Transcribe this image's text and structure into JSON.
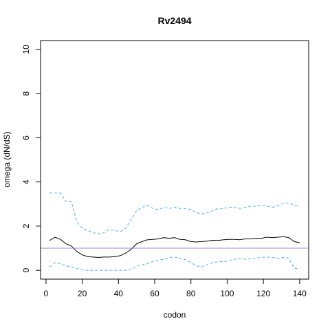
{
  "chart_data": {
    "type": "line",
    "title": "Rv2494",
    "xlabel": "codon",
    "ylabel": "omega (dN/dS)",
    "xlim": [
      -3,
      145
    ],
    "ylim": [
      -0.4,
      10.4
    ],
    "xticks": [
      0,
      20,
      40,
      60,
      80,
      100,
      120,
      140
    ],
    "yticks": [
      0,
      2,
      4,
      6,
      8,
      10
    ],
    "reference_line": {
      "y": 1,
      "color": "#b07fc8"
    },
    "grid": false,
    "series": [
      {
        "style": "solid",
        "color": "#000000",
        "x": [
          2,
          5,
          8,
          11,
          14,
          17,
          20,
          23,
          26,
          29,
          32,
          35,
          38,
          41,
          44,
          47,
          50,
          53,
          56,
          59,
          62,
          65,
          68,
          71,
          74,
          77,
          80,
          83,
          86,
          89,
          92,
          95,
          98,
          101,
          104,
          107,
          110,
          113,
          116,
          119,
          122,
          125,
          128,
          131,
          134,
          137,
          140
        ],
        "y": [
          1.35,
          1.5,
          1.4,
          1.2,
          1.1,
          0.85,
          0.7,
          0.62,
          0.6,
          0.58,
          0.6,
          0.6,
          0.62,
          0.66,
          0.78,
          0.95,
          1.2,
          1.3,
          1.38,
          1.4,
          1.42,
          1.48,
          1.45,
          1.48,
          1.4,
          1.38,
          1.3,
          1.28,
          1.3,
          1.32,
          1.36,
          1.35,
          1.38,
          1.4,
          1.4,
          1.38,
          1.42,
          1.42,
          1.45,
          1.45,
          1.5,
          1.48,
          1.5,
          1.52,
          1.48,
          1.3,
          1.25
        ]
      },
      {
        "style": "dashed",
        "color": "#4ab0e8",
        "x": [
          2,
          5,
          8,
          11,
          14,
          17,
          20,
          23,
          26,
          29,
          32,
          35,
          38,
          41,
          44,
          47,
          50,
          53,
          56,
          59,
          62,
          65,
          68,
          71,
          74,
          77,
          80,
          83,
          86,
          89,
          92,
          95,
          98,
          101,
          104,
          107,
          110,
          113,
          116,
          119,
          122,
          125,
          128,
          131,
          134,
          137,
          140
        ],
        "y": [
          3.5,
          3.5,
          3.5,
          3.1,
          3.1,
          2.2,
          1.9,
          1.8,
          1.7,
          1.65,
          1.7,
          1.85,
          1.8,
          1.75,
          1.9,
          2.3,
          2.7,
          2.85,
          2.95,
          2.8,
          2.75,
          2.85,
          2.8,
          2.85,
          2.8,
          2.8,
          2.75,
          2.6,
          2.55,
          2.6,
          2.7,
          2.8,
          2.8,
          2.85,
          2.85,
          2.8,
          2.85,
          2.9,
          2.9,
          2.95,
          2.9,
          2.85,
          2.95,
          3.05,
          3.05,
          2.95,
          2.9
        ]
      },
      {
        "style": "dashed",
        "color": "#4ab0e8",
        "x": [
          2,
          5,
          8,
          11,
          14,
          17,
          20,
          23,
          26,
          29,
          32,
          35,
          38,
          41,
          44,
          47,
          50,
          53,
          56,
          59,
          62,
          65,
          68,
          71,
          74,
          77,
          80,
          83,
          86,
          89,
          92,
          95,
          98,
          101,
          104,
          107,
          110,
          113,
          116,
          119,
          122,
          125,
          128,
          131,
          134,
          137,
          140
        ],
        "y": [
          0.15,
          0.35,
          0.3,
          0.2,
          0.15,
          0.08,
          0.02,
          0.0,
          0.0,
          0.0,
          0.0,
          0.0,
          0.0,
          0.0,
          0.0,
          0.02,
          0.2,
          0.25,
          0.3,
          0.4,
          0.45,
          0.5,
          0.58,
          0.6,
          0.55,
          0.48,
          0.35,
          0.2,
          0.15,
          0.25,
          0.35,
          0.38,
          0.4,
          0.42,
          0.5,
          0.55,
          0.5,
          0.52,
          0.55,
          0.58,
          0.6,
          0.58,
          0.55,
          0.58,
          0.55,
          0.1,
          0.05
        ]
      }
    ]
  }
}
